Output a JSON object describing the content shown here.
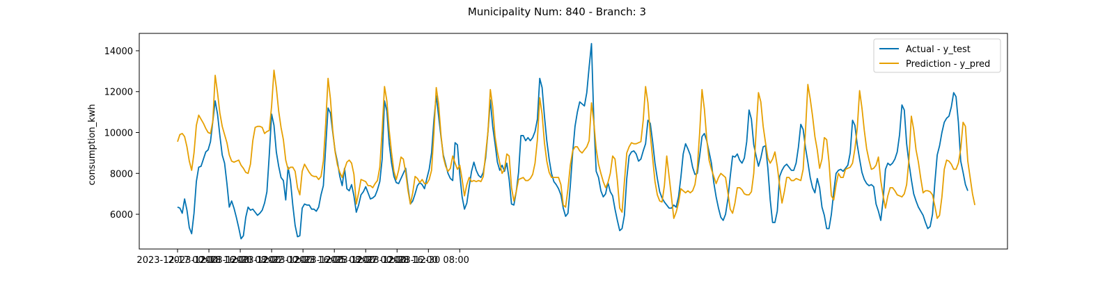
{
  "chart_data": {
    "type": "line",
    "title": "Municipality Num: 840 - Branch: 3",
    "xlabel": "",
    "ylabel": "consumption_kwh",
    "x_start": "2023-12-17 00:00",
    "x_step_hours": 3,
    "x_tick_labels": [
      "2023-12-17 00:00",
      "2023-12-18 16:00",
      "2023-12-20 08:00",
      "2023-12-22 00:00",
      "2023-12-23 16:00",
      "2023-12-25 08:00",
      "2023-12-27 00:00",
      "2023-12-28 16:00",
      "2023-12-30 08:00",
      ""
    ],
    "y_ticks": [
      6000,
      8000,
      10000,
      12000,
      14000
    ],
    "ylim": [
      4300,
      14850
    ],
    "grid": false,
    "legend_position": "upper right",
    "series": [
      {
        "name": "Actual - y_test",
        "color": "#0072B2",
        "values": [
          6350,
          6300,
          6050,
          6750,
          6200,
          5350,
          5050,
          6050,
          7600,
          8300,
          8350,
          8700,
          9050,
          9150,
          9550,
          10550,
          11550,
          10900,
          9850,
          8900,
          8500,
          7500,
          6350,
          6650,
          6300,
          5850,
          5350,
          4800,
          4950,
          5850,
          6350,
          6200,
          6250,
          6100,
          5950,
          6050,
          6200,
          6550,
          7100,
          8900,
          10900,
          10350,
          9050,
          8350,
          7800,
          7650,
          6700,
          8300,
          7650,
          6450,
          5450,
          4900,
          4950,
          6300,
          6500,
          6450,
          6450,
          6250,
          6250,
          6150,
          6350,
          6950,
          7400,
          9300,
          11200,
          10950,
          10000,
          9100,
          8550,
          7850,
          7400,
          8250,
          7250,
          7150,
          7450,
          6900,
          6100,
          6450,
          6950,
          7100,
          7350,
          7050,
          6750,
          6800,
          6900,
          7200,
          7600,
          8700,
          11550,
          11050,
          9450,
          8500,
          7850,
          7550,
          7500,
          7750,
          8000,
          8250,
          7300,
          6500,
          6650,
          7000,
          7400,
          7550,
          7450,
          7250,
          7750,
          8200,
          9000,
          10600,
          11800,
          10800,
          9800,
          8900,
          8450,
          8000,
          7750,
          7650,
          9500,
          9400,
          7950,
          6850,
          6250,
          6550,
          7350,
          8100,
          8550,
          8150,
          7900,
          7800,
          8050,
          8750,
          10050,
          11600,
          10300,
          9450,
          8550,
          8150,
          8400,
          8100,
          8500,
          7700,
          6500,
          6450,
          7100,
          8050,
          9850,
          9850,
          9600,
          9750,
          9600,
          9750,
          10050,
          10650,
          12650,
          12200,
          10800,
          9600,
          8700,
          8000,
          7600,
          7450,
          7250,
          6950,
          6300,
          5900,
          6050,
          7400,
          9000,
          10300,
          11000,
          11500,
          11400,
          11300,
          11950,
          13200,
          14350,
          10600,
          8100,
          7800,
          7150,
          6850,
          7000,
          7550,
          7100,
          6900,
          6250,
          5700,
          5200,
          5300,
          5950,
          7750,
          8850,
          9050,
          9100,
          8950,
          8600,
          8700,
          9100,
          9450,
          10600,
          10450,
          9550,
          8500,
          7750,
          7100,
          6800,
          6600,
          6450,
          6300,
          6300,
          6450,
          6350,
          6850,
          7800,
          8950,
          9450,
          9200,
          8900,
          8300,
          7950,
          8000,
          8850,
          9800,
          9950,
          9600,
          9050,
          8500,
          7550,
          6850,
          6300,
          5850,
          5700,
          6000,
          6750,
          7850,
          8850,
          8800,
          8950,
          8650,
          8500,
          8750,
          9550,
          11100,
          10650,
          9400,
          8850,
          8350,
          8750,
          9300,
          9350,
          8250,
          6700,
          5600,
          5600,
          6150,
          7850,
          8150,
          8350,
          8450,
          8300,
          8150,
          8150,
          8500,
          9300,
          10400,
          10150,
          9250,
          8550,
          7800,
          7300,
          7050,
          7750,
          7300,
          6350,
          5950,
          5300,
          5300,
          6000,
          7100,
          8000,
          8150,
          8200,
          8100,
          8250,
          8400,
          9000,
          10600,
          10350,
          9400,
          8700,
          8050,
          7700,
          7500,
          7400,
          7450,
          7350,
          6500,
          6150,
          5700,
          6700,
          8200,
          8500,
          8400,
          8500,
          8700,
          9050,
          9900,
          11350,
          11100,
          9450,
          8500,
          7700,
          7000,
          6650,
          6350,
          6150,
          5950,
          5600,
          5300,
          5400,
          6000,
          7550,
          8900,
          9350,
          10000,
          10500,
          10700,
          10800,
          11250,
          11950,
          11750,
          10500,
          8600,
          8050,
          7450,
          7150
        ]
      },
      {
        "name": "Prediction - y_pred",
        "color": "#E69F00",
        "values": [
          9550,
          9900,
          9950,
          9800,
          9300,
          8600,
          8150,
          9000,
          10350,
          10850,
          10650,
          10450,
          10200,
          10000,
          9950,
          10550,
          12800,
          11950,
          10950,
          10300,
          9900,
          9500,
          8900,
          8600,
          8550,
          8600,
          8650,
          8400,
          8250,
          8050,
          8000,
          8450,
          9600,
          10250,
          10300,
          10300,
          10250,
          9950,
          10050,
          10100,
          11300,
          13050,
          12200,
          11050,
          10250,
          9650,
          8650,
          8200,
          8300,
          8300,
          8100,
          7300,
          6950,
          8100,
          8450,
          8250,
          8050,
          7900,
          7850,
          7850,
          7700,
          7850,
          8600,
          10450,
          12650,
          11650,
          10100,
          9050,
          8400,
          8050,
          7800,
          8200,
          8550,
          8650,
          8500,
          7950,
          6500,
          7050,
          7700,
          7650,
          7600,
          7400,
          7400,
          7300,
          7500,
          7650,
          8300,
          10100,
          12250,
          11550,
          10100,
          9000,
          8100,
          7700,
          8150,
          8800,
          8700,
          8050,
          7150,
          6500,
          7050,
          7850,
          7750,
          7550,
          7700,
          7500,
          7500,
          7700,
          8150,
          9950,
          12200,
          11400,
          9900,
          8800,
          8350,
          8100,
          8250,
          8850,
          8500,
          8200,
          8400,
          7700,
          6900,
          7450,
          7800,
          7600,
          7650,
          7600,
          7650,
          7600,
          7850,
          8950,
          10050,
          12100,
          11250,
          9800,
          9050,
          8500,
          8000,
          8200,
          8950,
          8850,
          7300,
          6650,
          7100,
          7700,
          7750,
          7800,
          7650,
          7650,
          7750,
          7950,
          8500,
          9650,
          11700,
          10900,
          9500,
          8600,
          8050,
          7800,
          7800,
          7800,
          7800,
          7450,
          6450,
          6350,
          7250,
          8400,
          9100,
          9300,
          9300,
          9100,
          9000,
          9150,
          9300,
          9600,
          11450,
          10500,
          9200,
          8450,
          8000,
          7600,
          7300,
          7550,
          8000,
          8850,
          8700,
          7650,
          6300,
          6100,
          7600,
          9000,
          9300,
          9500,
          9450,
          9450,
          9500,
          9550,
          10600,
          12250,
          11450,
          9900,
          8750,
          7600,
          6950,
          6650,
          6600,
          7400,
          8850,
          7850,
          6850,
          5800,
          6100,
          6550,
          7250,
          7150,
          7050,
          7150,
          7050,
          7150,
          7450,
          8250,
          10000,
          12100,
          11150,
          9700,
          8650,
          8200,
          7850,
          7500,
          7800,
          8000,
          7900,
          7800,
          7050,
          6250,
          6050,
          6550,
          7300,
          7300,
          7200,
          7000,
          6950,
          6950,
          7100,
          8000,
          10050,
          11950,
          11500,
          10300,
          9500,
          8750,
          8500,
          8700,
          9050,
          8350,
          7400,
          6550,
          7100,
          7800,
          7800,
          7650,
          7650,
          7750,
          7700,
          7650,
          8200,
          10100,
          12350,
          11650,
          10800,
          9800,
          9150,
          8250,
          8700,
          9750,
          9650,
          8550,
          6900,
          6700,
          7450,
          8000,
          7800,
          7800,
          8200,
          8250,
          8300,
          8500,
          9200,
          10200,
          12050,
          11200,
          10100,
          9200,
          8650,
          8200,
          8250,
          8400,
          8800,
          7650,
          6900,
          6300,
          6900,
          7300,
          7300,
          7150,
          6950,
          6900,
          6850,
          7000,
          7450,
          8700,
          10800,
          10150,
          9150,
          8550,
          7750,
          7050,
          7150,
          7150,
          7100,
          6950,
          6400,
          5800,
          5950,
          6850,
          8200,
          8650,
          8600,
          8450,
          8200,
          8200,
          8500,
          9200,
          10500,
          10300,
          8600,
          7800,
          7000,
          6450
        ]
      }
    ]
  }
}
